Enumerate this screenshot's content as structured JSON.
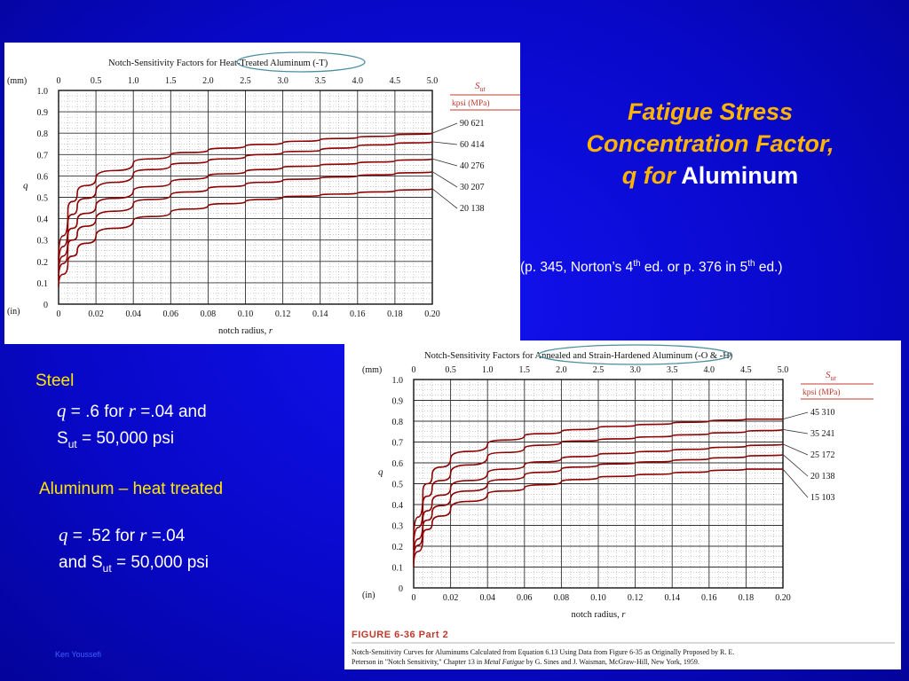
{
  "slide": {
    "title_line1": "Fatigue Stress",
    "title_line2": "Concentration Factor,",
    "title_q": "q",
    "title_for": " for",
    "title_aluminum": " Aluminum",
    "reference_pre": "(p. 345, Norton’s 4",
    "reference_sup1": "th",
    "reference_mid": " ed. or p. 376 in 5",
    "reference_sup2": "th",
    "reference_post": " ed.)",
    "author": "Ken Youssefi"
  },
  "notes": {
    "steel_heading": "Steel",
    "steel_q_var": "q",
    "steel_q_text": " = .6 for ",
    "steel_r_var": "r",
    "steel_r_text": " =.04 and",
    "steel_sut_S": "S",
    "steel_sut_sub": "ut",
    "steel_sut_text": " = 50,000 psi",
    "al_heading": "Aluminum – heat treated",
    "al_q_var": "q",
    "al_q_text": " = .52 for ",
    "al_r_var": "r",
    "al_r_text": " =.04",
    "al_sut_pre": "and S",
    "al_sut_sub": "ut",
    "al_sut_text": " = 50,000 psi"
  },
  "chart_data": [
    {
      "type": "line",
      "title_prefix": "Notch-Sensitivity Factors for ",
      "title_circled": "Heat-Treated Aluminum (-T)",
      "top_unit": "(mm)",
      "top_ticks": [
        "0",
        "0.5",
        "1.0",
        "1.5",
        "2.0",
        "2.5",
        "3.0",
        "3.5",
        "4.0",
        "4.5",
        "5.0"
      ],
      "bottom_unit": "(in)",
      "bottom_ticks": [
        "0",
        "0.02",
        "0.04",
        "0.06",
        "0.08",
        "0.10",
        "0.12",
        "0.14",
        "0.16",
        "0.18",
        "0.20"
      ],
      "y_ticks": [
        "0",
        "0.1",
        "0.2",
        "0.3",
        "0.4",
        "0.5",
        "0.6",
        "0.7",
        "0.8",
        "0.9",
        "1.0"
      ],
      "ylabel": "q",
      "xlabel": "notch radius,",
      "xlabel_var": "r",
      "xlim": [
        0,
        0.2
      ],
      "ylim": [
        0,
        1.0
      ],
      "legend_title_S": "S",
      "legend_title_sub": "ut",
      "legend_header": "kpsi   (MPa)",
      "series": [
        {
          "name": "90   621",
          "x": [
            0.0,
            0.005,
            0.01,
            0.02,
            0.04,
            0.06,
            0.08,
            0.1,
            0.12,
            0.14,
            0.16,
            0.18,
            0.2
          ],
          "y": [
            0.2,
            0.44,
            0.52,
            0.59,
            0.66,
            0.7,
            0.72,
            0.74,
            0.755,
            0.77,
            0.78,
            0.79,
            0.8
          ]
        },
        {
          "name": "60   414",
          "x": [
            0.0,
            0.005,
            0.01,
            0.02,
            0.04,
            0.06,
            0.08,
            0.1,
            0.12,
            0.14,
            0.16,
            0.18,
            0.2
          ],
          "y": [
            0.16,
            0.38,
            0.46,
            0.53,
            0.61,
            0.65,
            0.67,
            0.69,
            0.71,
            0.72,
            0.74,
            0.75,
            0.76
          ]
        },
        {
          "name": "40   276",
          "x": [
            0.0,
            0.005,
            0.01,
            0.02,
            0.04,
            0.06,
            0.08,
            0.1,
            0.12,
            0.14,
            0.16,
            0.18,
            0.2
          ],
          "y": [
            0.13,
            0.32,
            0.39,
            0.46,
            0.53,
            0.57,
            0.6,
            0.62,
            0.64,
            0.65,
            0.66,
            0.67,
            0.68
          ]
        },
        {
          "name": "30   207",
          "x": [
            0.0,
            0.005,
            0.01,
            0.02,
            0.04,
            0.06,
            0.08,
            0.1,
            0.12,
            0.14,
            0.16,
            0.18,
            0.2
          ],
          "y": [
            0.11,
            0.27,
            0.33,
            0.4,
            0.47,
            0.51,
            0.54,
            0.56,
            0.58,
            0.59,
            0.6,
            0.61,
            0.62
          ]
        },
        {
          "name": "20   138",
          "x": [
            0.0,
            0.005,
            0.01,
            0.02,
            0.04,
            0.06,
            0.08,
            0.1,
            0.12,
            0.14,
            0.16,
            0.18,
            0.2
          ],
          "y": [
            0.08,
            0.2,
            0.25,
            0.32,
            0.39,
            0.43,
            0.46,
            0.48,
            0.5,
            0.51,
            0.52,
            0.53,
            0.54
          ]
        }
      ]
    },
    {
      "type": "line",
      "title_prefix": "Notch-Sensitivity Factors for ",
      "title_circled": "Annealed and Strain-Hardened Aluminum (-O & -H)",
      "top_unit": "(mm)",
      "top_ticks": [
        "0",
        "0.5",
        "1.0",
        "1.5",
        "2.0",
        "2.5",
        "3.0",
        "3.5",
        "4.0",
        "4.5",
        "5.0"
      ],
      "bottom_unit": "(in)",
      "bottom_ticks": [
        "0",
        "0.02",
        "0.04",
        "0.06",
        "0.08",
        "0.10",
        "0.12",
        "0.14",
        "0.16",
        "0.18",
        "0.20"
      ],
      "y_ticks": [
        "0",
        "0.1",
        "0.2",
        "0.3",
        "0.4",
        "0.5",
        "0.6",
        "0.7",
        "0.8",
        "0.9",
        "1.0"
      ],
      "ylabel": "q",
      "xlabel": "notch radius,",
      "xlabel_var": "r",
      "xlim": [
        0,
        0.2
      ],
      "ylim": [
        0,
        1.0
      ],
      "legend_title_S": "S",
      "legend_title_sub": "ut",
      "legend_header": "kpsi   (MPa)",
      "figure_label": "FIGURE 6-36   Part 2",
      "caption_line1": "Notch-Sensitivity Curves for Aluminums Calculated from Equation 6.13 Using Data from Figure 6-35 as Originally Proposed by R. E.",
      "caption_line2_pre": "Peterson in \"Notch Sensitivity,\" Chapter 13 in ",
      "caption_line2_ital": "Metal Fatigue",
      "caption_line2_post": " by G. Sines and J. Waisman, McGraw-Hill, New York, 1959.",
      "series": [
        {
          "name": "45   310",
          "x": [
            0.0,
            0.005,
            0.01,
            0.02,
            0.04,
            0.06,
            0.08,
            0.1,
            0.12,
            0.14,
            0.16,
            0.18,
            0.2
          ],
          "y": [
            0.22,
            0.46,
            0.54,
            0.62,
            0.69,
            0.73,
            0.75,
            0.77,
            0.78,
            0.79,
            0.8,
            0.81,
            0.81
          ]
        },
        {
          "name": "35   241",
          "x": [
            0.0,
            0.005,
            0.01,
            0.02,
            0.04,
            0.06,
            0.08,
            0.1,
            0.12,
            0.14,
            0.16,
            0.18,
            0.2
          ],
          "y": [
            0.18,
            0.4,
            0.48,
            0.55,
            0.63,
            0.67,
            0.7,
            0.71,
            0.72,
            0.73,
            0.74,
            0.75,
            0.76
          ]
        },
        {
          "name": "25   172",
          "x": [
            0.0,
            0.005,
            0.01,
            0.02,
            0.04,
            0.06,
            0.08,
            0.1,
            0.12,
            0.14,
            0.16,
            0.18,
            0.2
          ],
          "y": [
            0.14,
            0.33,
            0.41,
            0.48,
            0.55,
            0.59,
            0.62,
            0.64,
            0.65,
            0.66,
            0.67,
            0.68,
            0.69
          ]
        },
        {
          "name": "20   138",
          "x": [
            0.0,
            0.005,
            0.01,
            0.02,
            0.04,
            0.06,
            0.08,
            0.1,
            0.12,
            0.14,
            0.16,
            0.18,
            0.2
          ],
          "y": [
            0.12,
            0.29,
            0.36,
            0.43,
            0.5,
            0.54,
            0.57,
            0.59,
            0.6,
            0.61,
            0.62,
            0.63,
            0.64
          ]
        },
        {
          "name": "15   103",
          "x": [
            0.0,
            0.005,
            0.01,
            0.02,
            0.04,
            0.06,
            0.08,
            0.1,
            0.12,
            0.14,
            0.16,
            0.18,
            0.2
          ],
          "y": [
            0.1,
            0.25,
            0.31,
            0.38,
            0.45,
            0.48,
            0.51,
            0.53,
            0.54,
            0.55,
            0.56,
            0.57,
            0.57
          ]
        }
      ]
    }
  ]
}
